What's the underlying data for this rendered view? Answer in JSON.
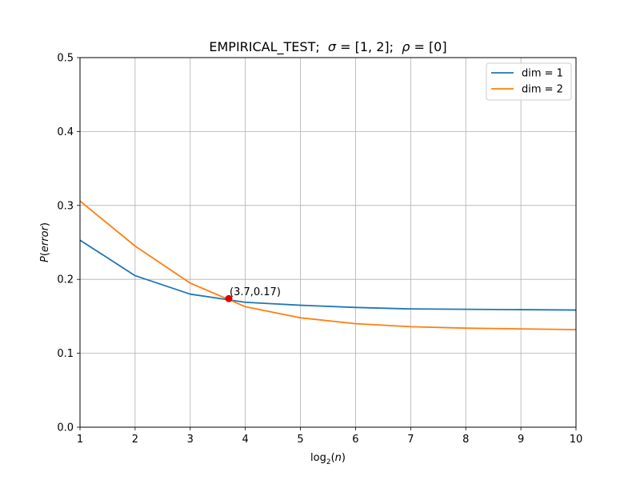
{
  "chart_data": {
    "type": "line",
    "title_parts": {
      "name": "EMPIRICAL_TEST;",
      "sigma_symbol": "σ",
      "sigma_value": " = [1, 2];",
      "rho_symbol": "ρ",
      "rho_value": " = [0]"
    },
    "xlabel_parts": {
      "base": "log",
      "sub": "2",
      "arg_open": "(",
      "arg": "n",
      "arg_close": ")"
    },
    "ylabel_parts": {
      "p": "P",
      "open": "(",
      "arg": "error",
      "close": ")"
    },
    "xlim": [
      1,
      10
    ],
    "ylim": [
      0,
      0.5
    ],
    "xticks": [
      1,
      2,
      3,
      4,
      5,
      6,
      7,
      8,
      9,
      10
    ],
    "yticks": [
      0.0,
      0.1,
      0.2,
      0.3,
      0.4,
      0.5
    ],
    "ytick_labels": [
      "0.0",
      "0.1",
      "0.2",
      "0.3",
      "0.4",
      "0.5"
    ],
    "grid": true,
    "legend_position": "top-right",
    "x": [
      1,
      2,
      3,
      4,
      5,
      6,
      7,
      8,
      9,
      10
    ],
    "series": [
      {
        "name": "dim = 1",
        "color": "#1f77b4",
        "values": [
          0.253,
          0.205,
          0.18,
          0.169,
          0.165,
          0.162,
          0.16,
          0.1595,
          0.159,
          0.1585
        ]
      },
      {
        "name": "dim = 2",
        "color": "#ff7f0e",
        "values": [
          0.306,
          0.245,
          0.195,
          0.163,
          0.148,
          0.14,
          0.136,
          0.134,
          0.133,
          0.132
        ]
      }
    ],
    "annotation": {
      "x": 3.7,
      "y": 0.174,
      "label": "(3.7,0.17)",
      "color": "#e00000"
    }
  }
}
